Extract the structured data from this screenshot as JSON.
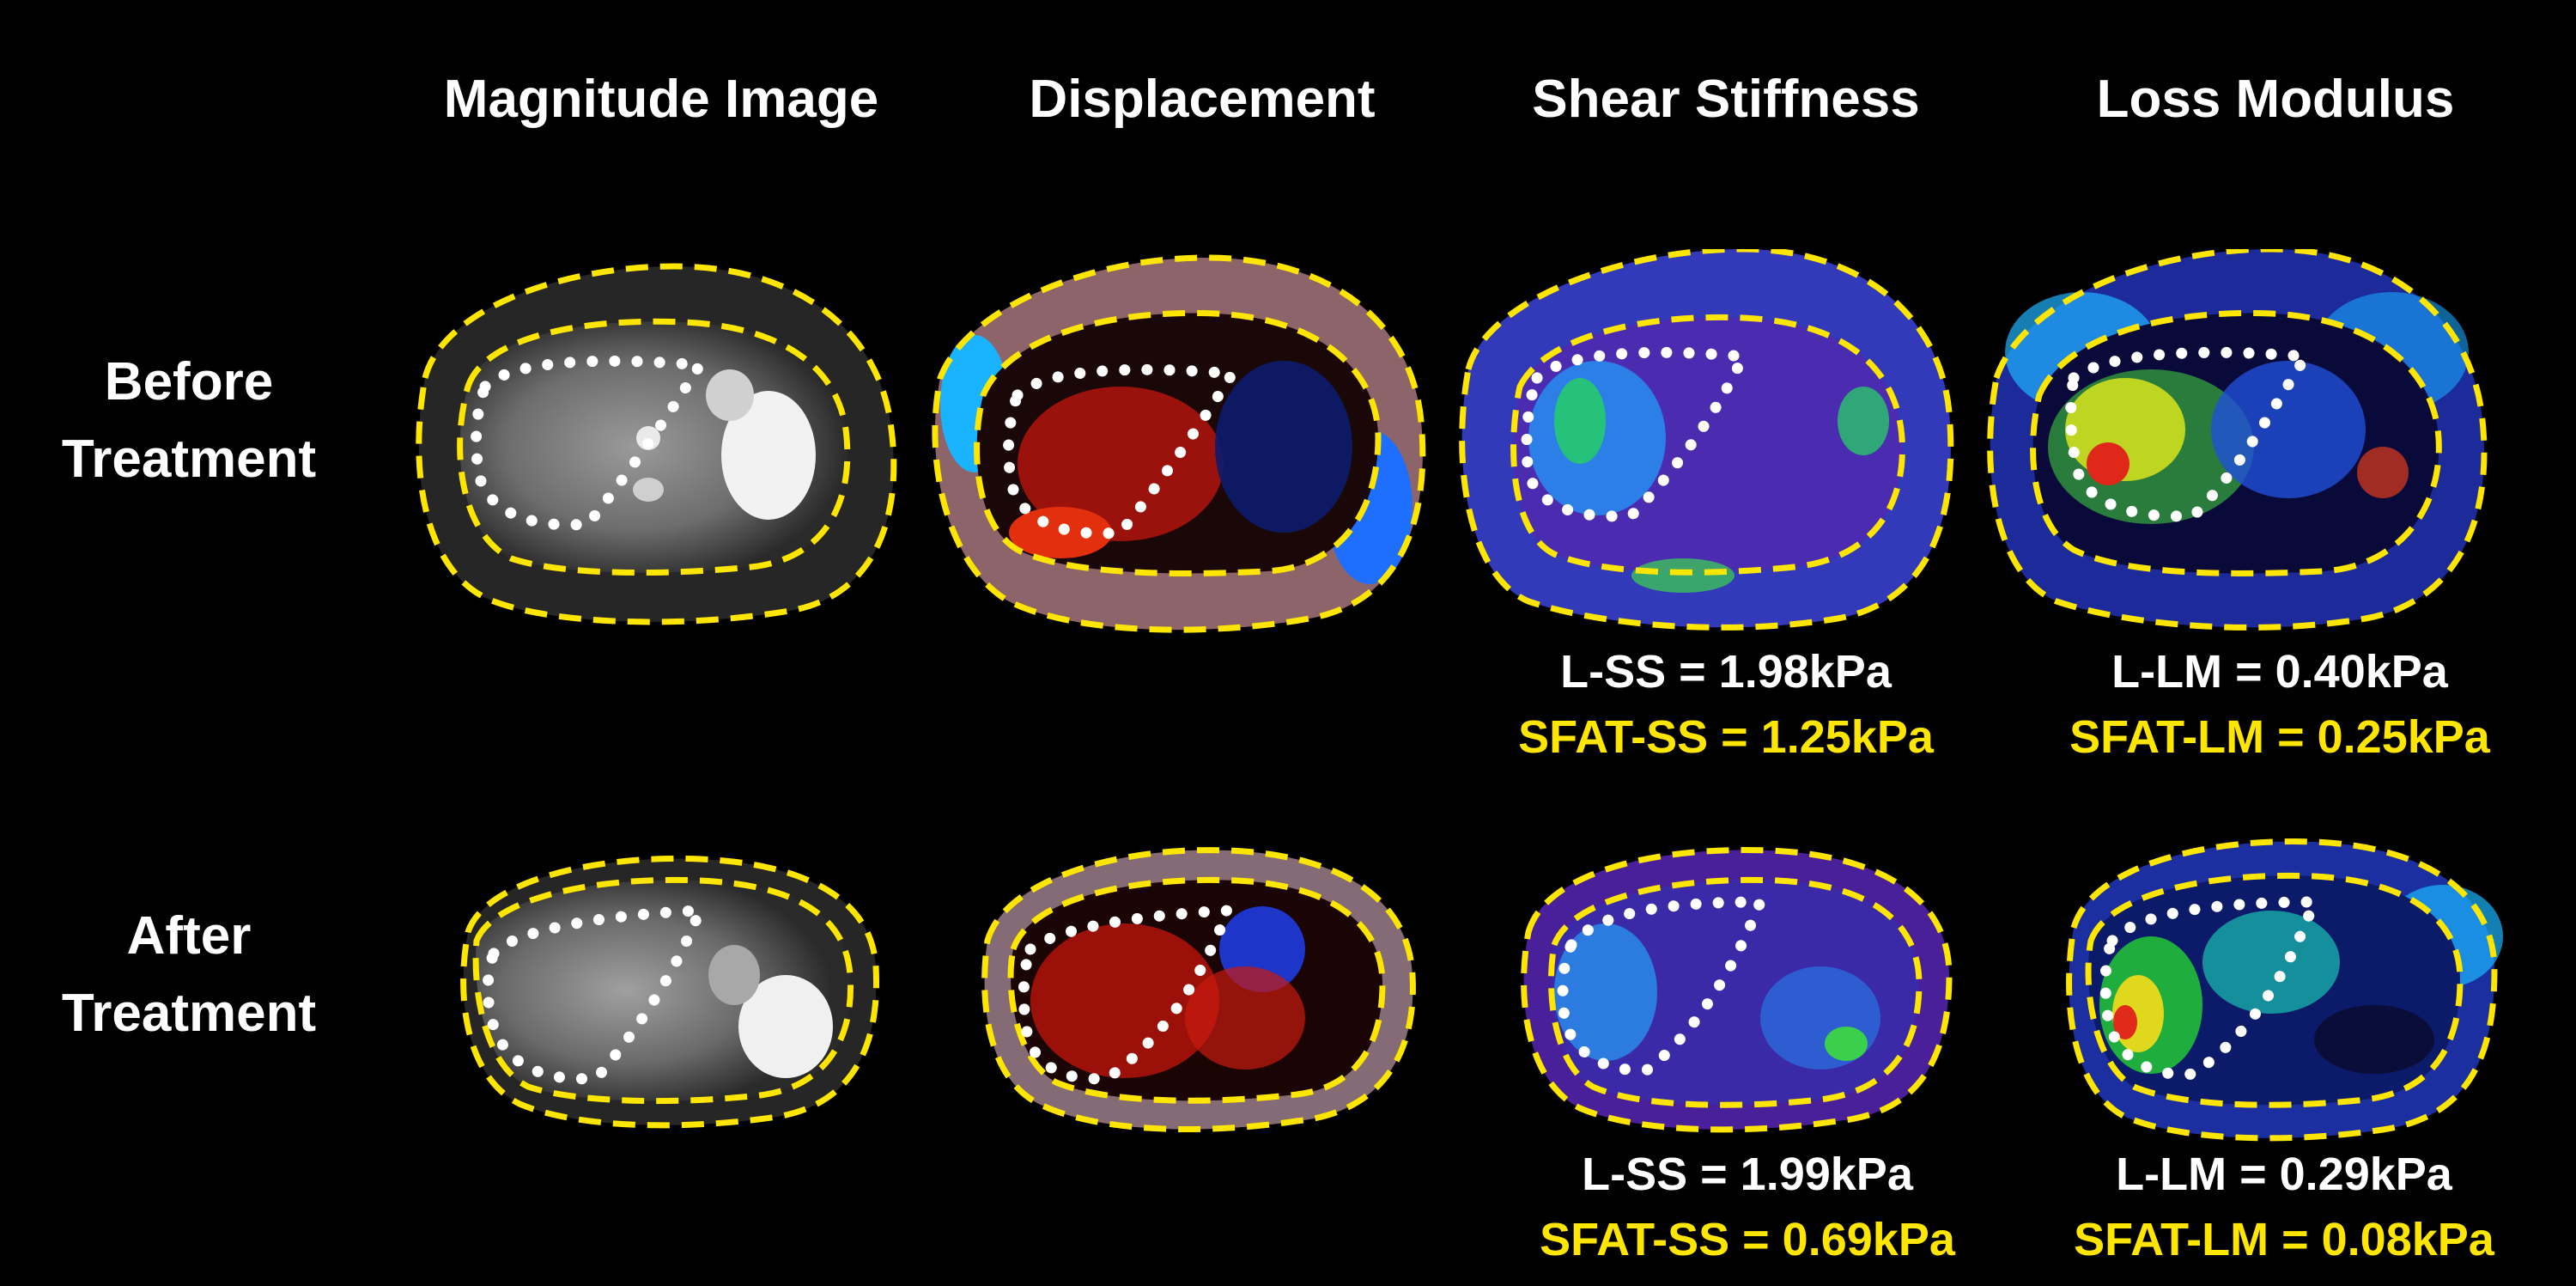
{
  "columns": [
    "Magnitude Image",
    "Displacement",
    "Shear Stiffness",
    "Loss Modulus"
  ],
  "rows": [
    {
      "label_line1": "Before",
      "label_line2": "Treatment"
    },
    {
      "label_line1": "After",
      "label_line2": "Treatment"
    }
  ],
  "metrics": {
    "before": {
      "ss_liver": "L-SS = 1.98kPa",
      "ss_fat": "SFAT-SS = 1.25kPa",
      "lm_liver": "L-LM = 0.40kPa",
      "lm_fat": "SFAT-LM = 0.25kPa"
    },
    "after": {
      "ss_liver": "L-SS = 1.99kPa",
      "ss_fat": "SFAT-SS = 0.69kPa",
      "lm_liver": "L-LM = 0.29kPa",
      "lm_fat": "SFAT-LM = 0.08kPa"
    }
  },
  "colors": {
    "background": "#000000",
    "outline": "#ffe600",
    "roi": "#ffffff",
    "highlight_text": "#ffe600"
  },
  "panels": [
    {
      "row": "before",
      "col": "magnitude",
      "style": "grayscale"
    },
    {
      "row": "before",
      "col": "displacement",
      "style": "red-blue"
    },
    {
      "row": "before",
      "col": "shear-stiffness",
      "style": "purple-blue-green"
    },
    {
      "row": "before",
      "col": "loss-modulus",
      "style": "blue-green-yellow"
    },
    {
      "row": "after",
      "col": "magnitude",
      "style": "grayscale"
    },
    {
      "row": "after",
      "col": "displacement",
      "style": "red-blue"
    },
    {
      "row": "after",
      "col": "shear-stiffness",
      "style": "purple-blue-green"
    },
    {
      "row": "after",
      "col": "loss-modulus",
      "style": "blue-green-yellow"
    }
  ]
}
